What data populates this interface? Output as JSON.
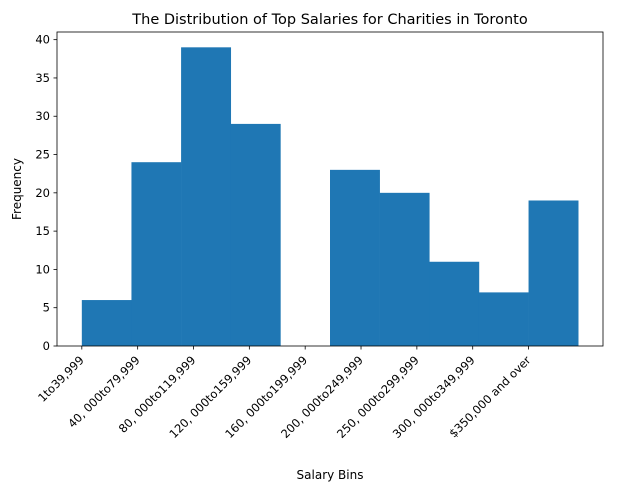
{
  "chart_data": {
    "type": "bar",
    "title": "The Distribution of Top Salaries for Charities in Toronto",
    "xlabel": "Salary Bins",
    "ylabel": "Frequency",
    "bar_color": "#1f77b4",
    "ylim": [
      0,
      41
    ],
    "yticks": [
      0,
      5,
      10,
      15,
      20,
      25,
      30,
      35,
      40
    ],
    "tick_labels": [
      "1to39,999",
      "40, 000to79,999",
      "80, 000to119,999",
      "120, 000to159,999",
      "160, 000to199,999",
      "200, 000to249,999",
      "250, 000to299,999",
      "300, 000to349,999",
      "$350,000 and over"
    ],
    "bins": [
      {
        "start": 0,
        "end": 0.8889,
        "value": 6
      },
      {
        "start": 0.8889,
        "end": 1.7778,
        "value": 24
      },
      {
        "start": 1.7778,
        "end": 2.6667,
        "value": 39
      },
      {
        "start": 2.6667,
        "end": 3.5556,
        "value": 29
      },
      {
        "start": 3.5556,
        "end": 4.4444,
        "value": 0
      },
      {
        "start": 4.4444,
        "end": 5.3333,
        "value": 23
      },
      {
        "start": 5.3333,
        "end": 6.2222,
        "value": 20
      },
      {
        "start": 6.2222,
        "end": 7.1111,
        "value": 11
      },
      {
        "start": 7.1111,
        "end": 8.0,
        "value": 7
      },
      {
        "start": 8.0,
        "end": 8.8889,
        "value": 19
      }
    ],
    "xlim": [
      -0.4444,
      9.3333
    ],
    "grid": false,
    "legend": "none"
  }
}
